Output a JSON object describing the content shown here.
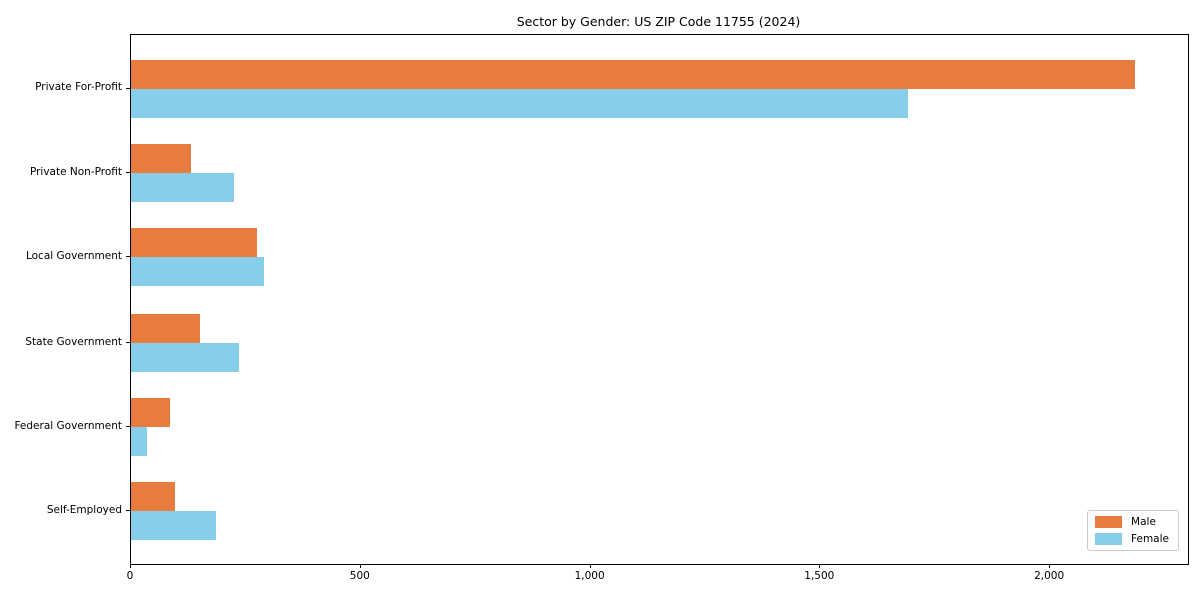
{
  "chart_data": {
    "type": "bar",
    "orientation": "horizontal",
    "title": "Sector by Gender: US ZIP Code 11755 (2024)",
    "categories": [
      "Private For-Profit",
      "Private Non-Profit",
      "Local Government",
      "State Government",
      "Federal Government",
      "Self-Employed"
    ],
    "series": [
      {
        "name": "Male",
        "color": "#E87B3E",
        "values": [
          2185,
          130,
          275,
          150,
          85,
          95
        ]
      },
      {
        "name": "Female",
        "color": "#87CEEB",
        "values": [
          1690,
          225,
          290,
          235,
          35,
          185
        ]
      }
    ],
    "xlabel": "",
    "ylabel": "",
    "xlim": [
      0,
      2300
    ],
    "xticks": {
      "values": [
        0,
        500,
        1000,
        1500,
        2000
      ],
      "labels": [
        "0",
        "500",
        "1,000",
        "1,500",
        "2,000"
      ]
    },
    "grid": false,
    "legend": {
      "position": "lower right",
      "entries": [
        "Male",
        "Female"
      ]
    }
  }
}
